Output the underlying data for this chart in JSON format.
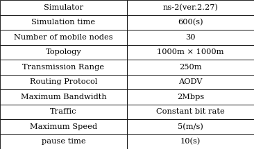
{
  "rows": [
    [
      "Simulator",
      "ns-2(ver.2.27)"
    ],
    [
      "Simulation time",
      "600(s)"
    ],
    [
      "Number of mobile nodes",
      "30"
    ],
    [
      "Topology",
      "1000m × 1000m"
    ],
    [
      "Transmission Range",
      "250m"
    ],
    [
      "Routing Protocol",
      "AODV"
    ],
    [
      "Maximum Bandwidth",
      "2Mbps"
    ],
    [
      "Traffic",
      "Constant bit rate"
    ],
    [
      "Maximum Speed",
      "5(m/s)"
    ],
    [
      "pause time",
      "10(s)"
    ]
  ],
  "col_split": 0.5,
  "bg_color": "#ffffff",
  "border_color": "#000000",
  "text_color": "#000000",
  "font_size": 8.2,
  "fig_width": 3.66,
  "fig_height": 2.15,
  "dpi": 100
}
